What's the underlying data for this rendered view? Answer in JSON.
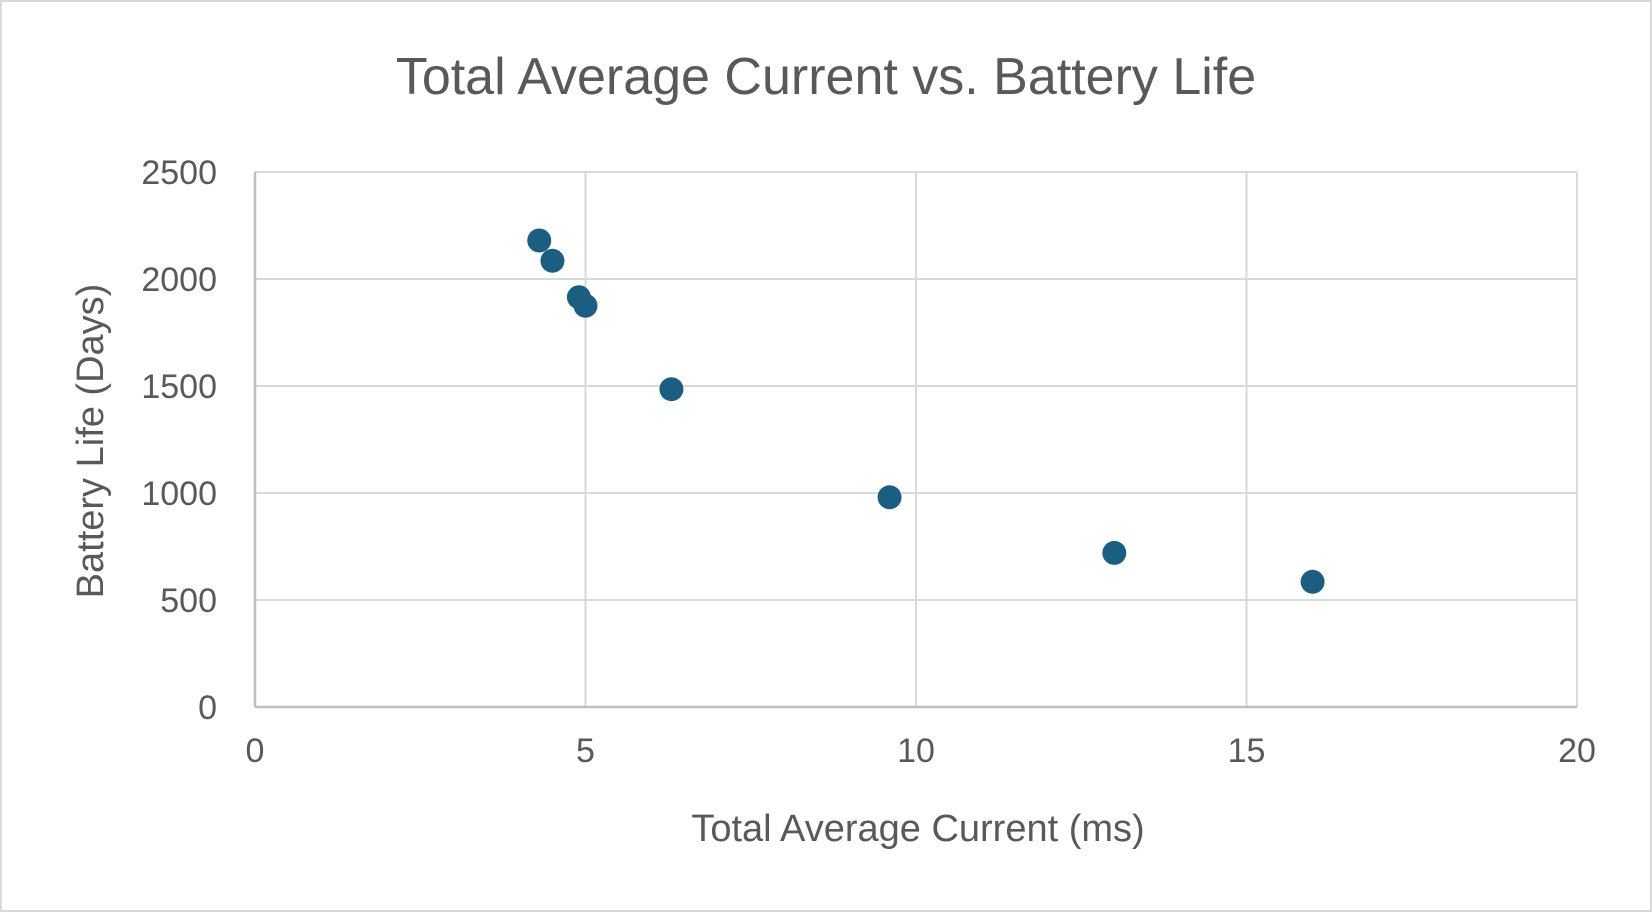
{
  "chart_data": {
    "type": "scatter",
    "title": "Total Average Current vs. Battery Life",
    "xlabel": "Total Average Current (ms)",
    "ylabel": "Battery Life (Days)",
    "xlim": [
      0,
      20
    ],
    "ylim": [
      0,
      2500
    ],
    "x_ticks": [
      0,
      5,
      10,
      15,
      20
    ],
    "y_ticks": [
      0,
      500,
      1000,
      1500,
      2000,
      2500
    ],
    "x_tick_labels": [
      "0",
      "5",
      "10",
      "15",
      "20"
    ],
    "y_tick_labels": [
      "0",
      "500",
      "1000",
      "1500",
      "2000",
      "2500"
    ],
    "grid": true,
    "legend": "none",
    "series": [
      {
        "name": "Battery Life",
        "color": "#1b5e82",
        "points": [
          {
            "x": 4.3,
            "y": 2180
          },
          {
            "x": 4.5,
            "y": 2085
          },
          {
            "x": 4.9,
            "y": 1915
          },
          {
            "x": 5.0,
            "y": 1875
          },
          {
            "x": 6.3,
            "y": 1485
          },
          {
            "x": 9.6,
            "y": 980
          },
          {
            "x": 13.0,
            "y": 720
          },
          {
            "x": 16.0,
            "y": 585
          }
        ]
      }
    ],
    "colors": {
      "text": "#595959",
      "grid": "#d9d9d9",
      "axis": "#bfbfbf",
      "marker": "#1b5e82"
    }
  }
}
